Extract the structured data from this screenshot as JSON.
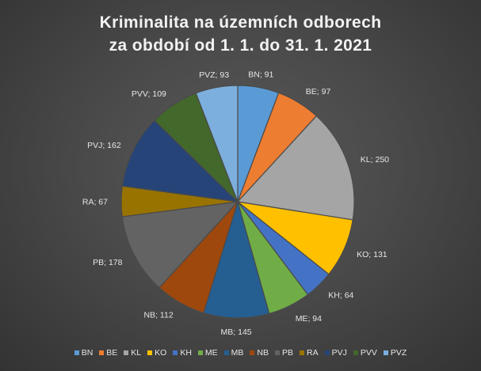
{
  "chart_data": {
    "type": "pie",
    "title_lines": [
      "Kriminalita na územních odborech",
      "za období od 1. 1. do 31. 1. 2021"
    ],
    "separator": "; ",
    "legend_position": "bottom",
    "slices": [
      {
        "label": "BN",
        "value": 91,
        "color": "#5b9bd5"
      },
      {
        "label": "BE",
        "value": 97,
        "color": "#ed7d31"
      },
      {
        "label": "KL",
        "value": 250,
        "color": "#a5a5a5"
      },
      {
        "label": "KO",
        "value": 131,
        "color": "#ffc000"
      },
      {
        "label": "KH",
        "value": 64,
        "color": "#4472c4"
      },
      {
        "label": "ME",
        "value": 94,
        "color": "#70ad47"
      },
      {
        "label": "MB",
        "value": 145,
        "color": "#255e91"
      },
      {
        "label": "NB",
        "value": 112,
        "color": "#9e480e"
      },
      {
        "label": "PB",
        "value": 178,
        "color": "#636363"
      },
      {
        "label": "RA",
        "value": 67,
        "color": "#997300"
      },
      {
        "label": "PVJ",
        "value": 162,
        "color": "#264478"
      },
      {
        "label": "PVV",
        "value": 109,
        "color": "#43682b"
      },
      {
        "label": "PVZ",
        "value": 93,
        "color": "#7cafdd"
      }
    ]
  }
}
